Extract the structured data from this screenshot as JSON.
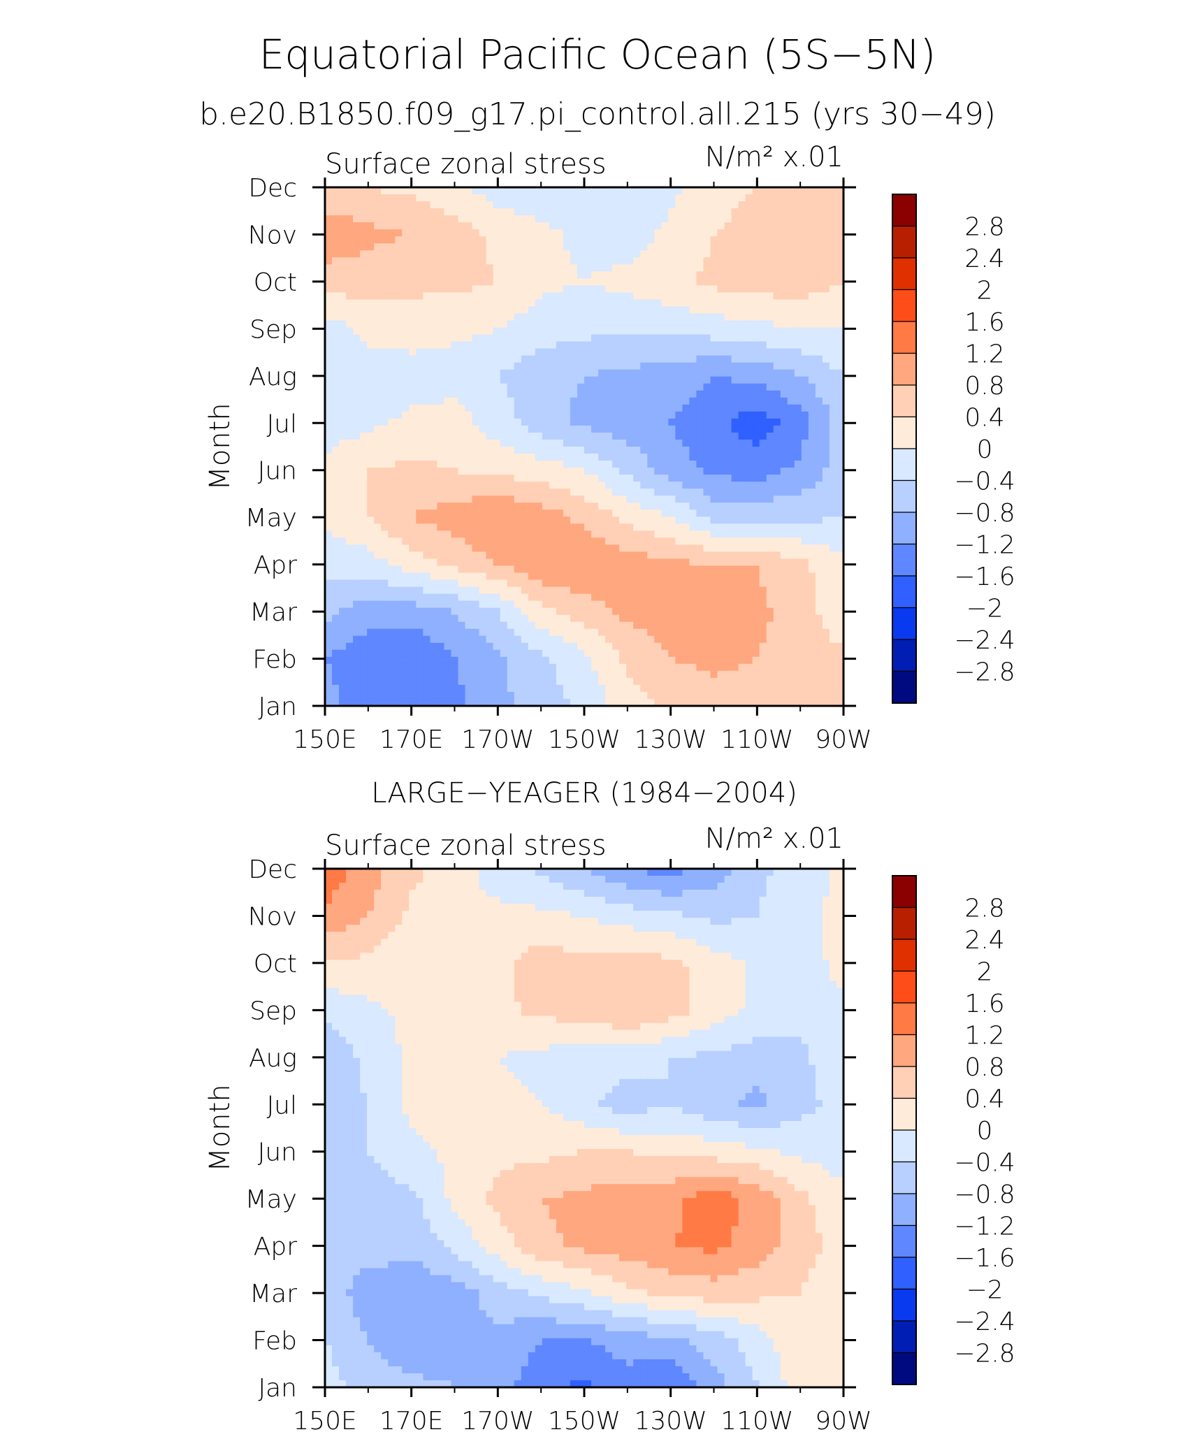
{
  "figure": {
    "title": "Equatorial Pacific Ocean (5S−5N)",
    "subtitle": "b.e20.B1850.f09_g17.pi_control.all.215 (yrs 30−49)"
  },
  "chart_data": [
    {
      "type": "heatmap",
      "panel_title": "",
      "left_label": "Surface zonal stress",
      "units_label": "N/m² x.01",
      "xlabel": "",
      "ylabel": "Month",
      "x_ticks": [
        "150E",
        "170E",
        "170W",
        "150W",
        "130W",
        "110W",
        "90W"
      ],
      "x_values": [
        150,
        170,
        190,
        210,
        230,
        250,
        270
      ],
      "y_ticks": [
        "Jan",
        "Feb",
        "Mar",
        "Apr",
        "May",
        "Jun",
        "Jul",
        "Aug",
        "Sep",
        "Oct",
        "Nov",
        "Dec"
      ],
      "xlim": [
        150,
        270
      ],
      "ylim": [
        1,
        12
      ],
      "levels": [
        -2.8,
        -2.4,
        -2,
        -1.6,
        -1.2,
        -0.8,
        -0.4,
        0,
        0.4,
        0.8,
        1.2,
        1.6,
        2,
        2.4,
        2.8
      ],
      "values": [
        [
          -1.0,
          -1.6,
          -1.6,
          -1.3,
          -0.9,
          -0.6,
          -0.3,
          0.2,
          0.5,
          0.6,
          0.6,
          0.6,
          0.6
        ],
        [
          -1.2,
          -1.5,
          -1.6,
          -1.2,
          -0.9,
          -0.5,
          -0.1,
          0.5,
          0.8,
          0.9,
          0.8,
          0.6,
          0.5
        ],
        [
          -0.7,
          -1.0,
          -1.0,
          -0.8,
          -0.4,
          0.3,
          0.6,
          0.9,
          1.0,
          1.0,
          0.9,
          0.6,
          0.1
        ],
        [
          -0.3,
          -0.2,
          0.2,
          0.5,
          0.8,
          1.1,
          1.2,
          1.0,
          0.9,
          0.8,
          0.8,
          0.5,
          0.1
        ],
        [
          0.1,
          0.4,
          0.8,
          1.0,
          1.2,
          1.0,
          0.7,
          0.3,
          0.0,
          -0.5,
          -0.5,
          -0.5,
          -0.4
        ],
        [
          0.1,
          0.4,
          0.5,
          0.4,
          0.3,
          0.2,
          0.0,
          -0.5,
          -1.0,
          -1.3,
          -1.4,
          -1.1,
          -0.6
        ],
        [
          -0.2,
          -0.1,
          0.1,
          0.2,
          -0.2,
          -0.6,
          -0.9,
          -1.0,
          -1.2,
          -1.5,
          -1.8,
          -1.4,
          -0.6
        ],
        [
          -0.3,
          -0.2,
          -0.2,
          -0.2,
          -0.4,
          -0.7,
          -0.8,
          -0.9,
          -1.0,
          -1.2,
          -1.1,
          -0.8,
          -0.4
        ],
        [
          -0.2,
          0.1,
          0.2,
          0.1,
          0.0,
          -0.2,
          -0.3,
          -0.3,
          -0.3,
          -0.2,
          -0.1,
          0.0,
          0.0
        ],
        [
          0.6,
          0.6,
          0.5,
          0.5,
          0.4,
          0.1,
          0.0,
          0.1,
          0.3,
          0.5,
          0.6,
          0.6,
          0.4
        ],
        [
          1.1,
          0.9,
          0.8,
          0.6,
          0.3,
          0.1,
          -0.1,
          -0.2,
          0.1,
          0.4,
          0.6,
          0.7,
          0.5
        ],
        [
          0.5,
          0.4,
          0.3,
          0.1,
          -0.2,
          -0.3,
          -0.4,
          -0.3,
          -0.1,
          0.2,
          0.4,
          0.5,
          0.5
        ]
      ]
    },
    {
      "type": "heatmap",
      "panel_title": "LARGE−YEAGER (1984−2004)",
      "left_label": "Surface zonal stress",
      "units_label": "N/m² x.01",
      "xlabel": "",
      "ylabel": "Month",
      "x_ticks": [
        "150E",
        "170E",
        "170W",
        "150W",
        "130W",
        "110W",
        "90W"
      ],
      "x_values": [
        150,
        170,
        190,
        210,
        230,
        250,
        270
      ],
      "y_ticks": [
        "Jan",
        "Feb",
        "Mar",
        "Apr",
        "May",
        "Jun",
        "Jul",
        "Aug",
        "Sep",
        "Oct",
        "Nov",
        "Dec"
      ],
      "xlim": [
        150,
        270
      ],
      "ylim": [
        1,
        12
      ],
      "levels": [
        -2.8,
        -2.4,
        -2,
        -1.6,
        -1.2,
        -0.8,
        -0.4,
        0,
        0.4,
        0.8,
        1.2,
        1.6,
        2,
        2.4,
        2.8
      ],
      "values": [
        [
          -0.2,
          -0.6,
          -0.7,
          -0.8,
          -1.0,
          -1.5,
          -1.7,
          -1.4,
          -1.6,
          -1.0,
          -0.4,
          0.2,
          0.2
        ],
        [
          -0.4,
          -0.8,
          -1.1,
          -0.9,
          -0.9,
          -1.2,
          -1.2,
          -1.0,
          -0.9,
          -0.6,
          -0.2,
          0.3,
          0.2
        ],
        [
          -0.6,
          -1.0,
          -1.1,
          -1.0,
          -0.6,
          -0.3,
          -0.1,
          0.3,
          0.5,
          0.6,
          0.5,
          0.4,
          0.1
        ],
        [
          -0.7,
          -0.6,
          -0.7,
          -0.3,
          0.2,
          0.7,
          0.9,
          1.0,
          1.2,
          1.3,
          1.0,
          0.6,
          0.2
        ],
        [
          -0.5,
          -0.6,
          -0.5,
          0.1,
          0.5,
          0.8,
          0.9,
          1.0,
          1.1,
          1.4,
          1.1,
          0.5,
          0.1
        ],
        [
          -0.5,
          -0.4,
          -0.1,
          0.1,
          0.3,
          0.3,
          0.4,
          0.4,
          0.3,
          0.2,
          0.1,
          -0.1,
          -0.2
        ],
        [
          -0.6,
          -0.4,
          0.1,
          0.1,
          0.1,
          0.0,
          -0.3,
          -0.6,
          -0.4,
          -0.7,
          -0.9,
          -0.5,
          -0.3
        ],
        [
          -0.7,
          -0.3,
          0.1,
          0.1,
          0.0,
          -0.1,
          -0.3,
          -0.2,
          -0.4,
          -0.5,
          -0.6,
          -0.5,
          -0.1
        ],
        [
          -0.3,
          -0.1,
          0.1,
          0.1,
          0.3,
          0.5,
          0.6,
          0.8,
          0.6,
          0.2,
          -0.1,
          -0.3,
          -0.1
        ],
        [
          0.4,
          0.3,
          0.1,
          0.2,
          0.3,
          0.6,
          0.5,
          0.6,
          0.5,
          0.2,
          -0.1,
          -0.3,
          0.2
        ],
        [
          1.1,
          0.8,
          0.3,
          0.1,
          0.1,
          0.1,
          0.0,
          -0.2,
          -0.3,
          -0.5,
          -0.4,
          -0.1,
          0.1
        ],
        [
          1.5,
          1.0,
          0.5,
          0.2,
          -0.2,
          -0.5,
          -0.8,
          -1.2,
          -1.4,
          -1.0,
          -0.5,
          -0.2,
          0.1
        ]
      ]
    }
  ],
  "colorbar": {
    "labels": [
      "2.8",
      "2.4",
      "2",
      "1.6",
      "1.2",
      "0.8",
      "0.4",
      "0",
      "−0.4",
      "−0.8",
      "−1.2",
      "−1.6",
      "−2",
      "−2.4",
      "−2.8"
    ],
    "colors": [
      "#8b0000",
      "#b81f00",
      "#e03000",
      "#ff4d1a",
      "#ff7a45",
      "#ffa77f",
      "#ffd0b6",
      "#ffebd9",
      "#d9e9ff",
      "#b8d0ff",
      "#8fb0ff",
      "#5f87ff",
      "#3060ff",
      "#0a3af0",
      "#001eb3",
      "#000a80"
    ]
  }
}
